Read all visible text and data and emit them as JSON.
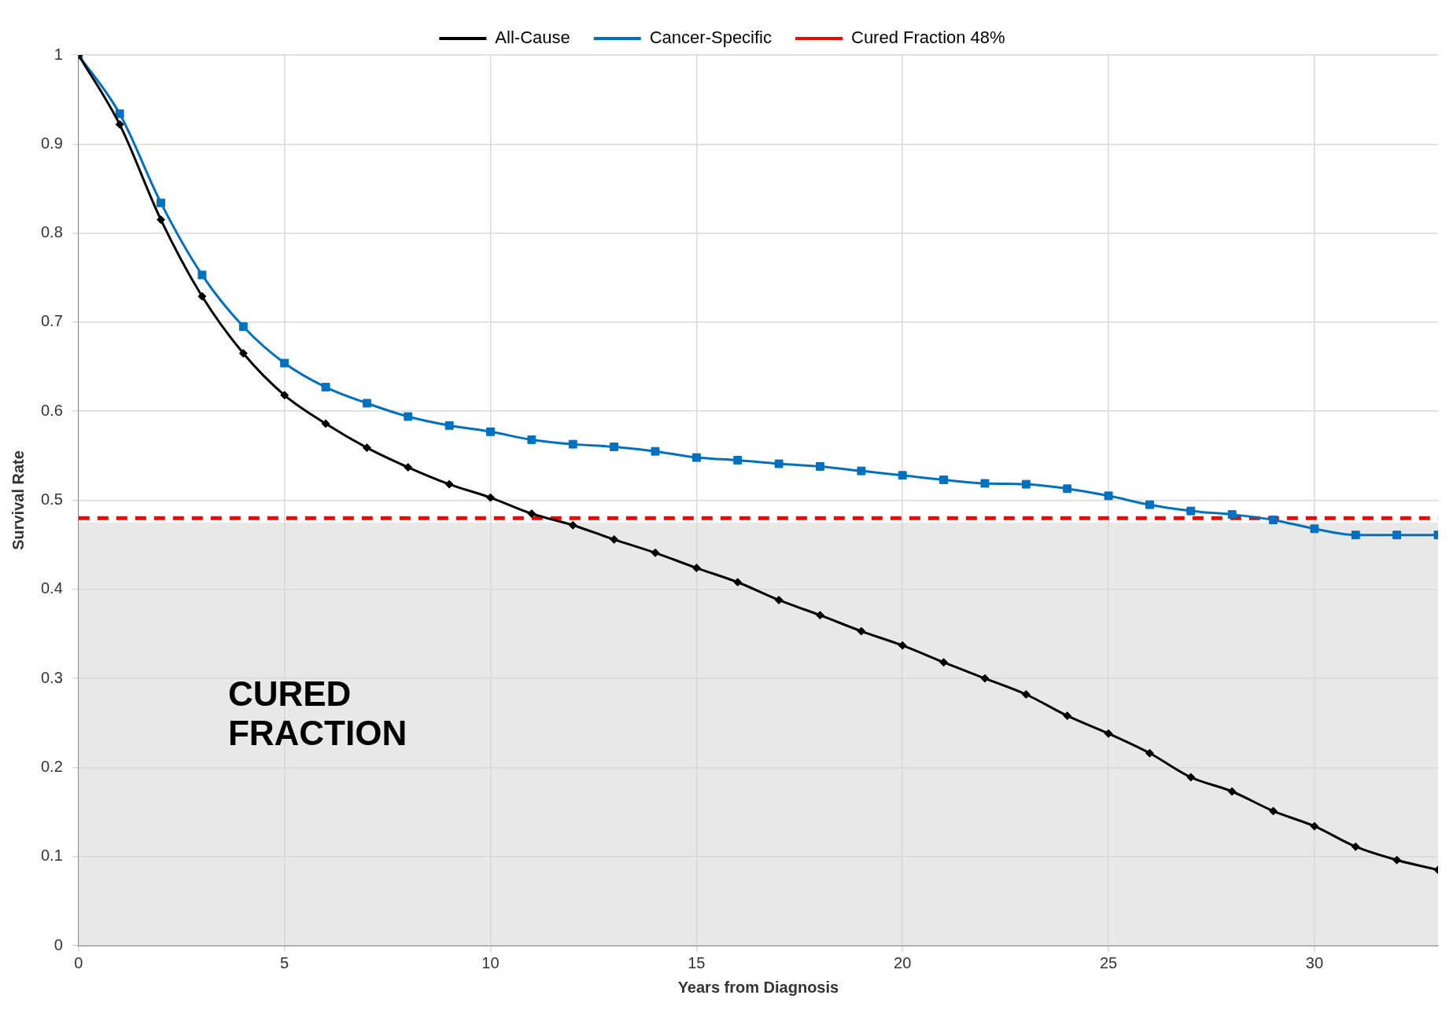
{
  "chart_data": {
    "type": "line",
    "xlabel": "Years from Diagnosis",
    "ylabel": "Survival Rate",
    "x": [
      0,
      1,
      2,
      3,
      4,
      5,
      6,
      7,
      8,
      9,
      10,
      11,
      12,
      13,
      14,
      15,
      16,
      17,
      18,
      19,
      20,
      21,
      22,
      23,
      24,
      25,
      26,
      27,
      28,
      29,
      30,
      31,
      32,
      33
    ],
    "series": [
      {
        "name": "All-Cause",
        "color": "#000000",
        "marker": "diamond",
        "values": [
          1,
          0.922,
          0.815,
          0.729,
          0.665,
          0.618,
          0.586,
          0.559,
          0.537,
          0.518,
          0.503,
          0.485,
          0.472,
          0.456,
          0.441,
          0.424,
          0.408,
          0.388,
          0.371,
          0.353,
          0.337,
          0.318,
          0.3,
          0.282,
          0.258,
          0.238,
          0.216,
          0.189,
          0.173,
          0.151,
          0.134,
          0.111,
          0.096,
          0.085
        ]
      },
      {
        "name": "Cancer-Specific",
        "color": "#0070c0",
        "marker": "square",
        "values": [
          1,
          0.934,
          0.834,
          0.753,
          0.695,
          0.654,
          0.627,
          0.609,
          0.594,
          0.584,
          0.577,
          0.568,
          0.563,
          0.56,
          0.555,
          0.548,
          0.545,
          0.541,
          0.538,
          0.533,
          0.528,
          0.523,
          0.519,
          0.518,
          0.513,
          0.505,
          0.495,
          0.488,
          0.484,
          0.478,
          0.468,
          0.461,
          0.461,
          0.461
        ]
      }
    ],
    "ref_lines": [
      {
        "axis": "y",
        "value": 0.48,
        "label": "Cured Fraction 48%",
        "color": "#ff0000",
        "line_style": "dashed"
      }
    ],
    "bands": [
      {
        "axis": "y",
        "from": 0,
        "to": 0.475,
        "label": "CURED FRACTION",
        "color": "#d9d9d9"
      }
    ],
    "xlim": [
      0,
      33
    ],
    "xticks": [
      0,
      5,
      10,
      15,
      20,
      25,
      30
    ],
    "ylim": [
      0,
      1
    ],
    "yticks": [
      0,
      0.1,
      0.2,
      0.3,
      0.4,
      0.5,
      0.6,
      0.7,
      0.8,
      0.9,
      1
    ],
    "grid": true,
    "legend": "top"
  }
}
